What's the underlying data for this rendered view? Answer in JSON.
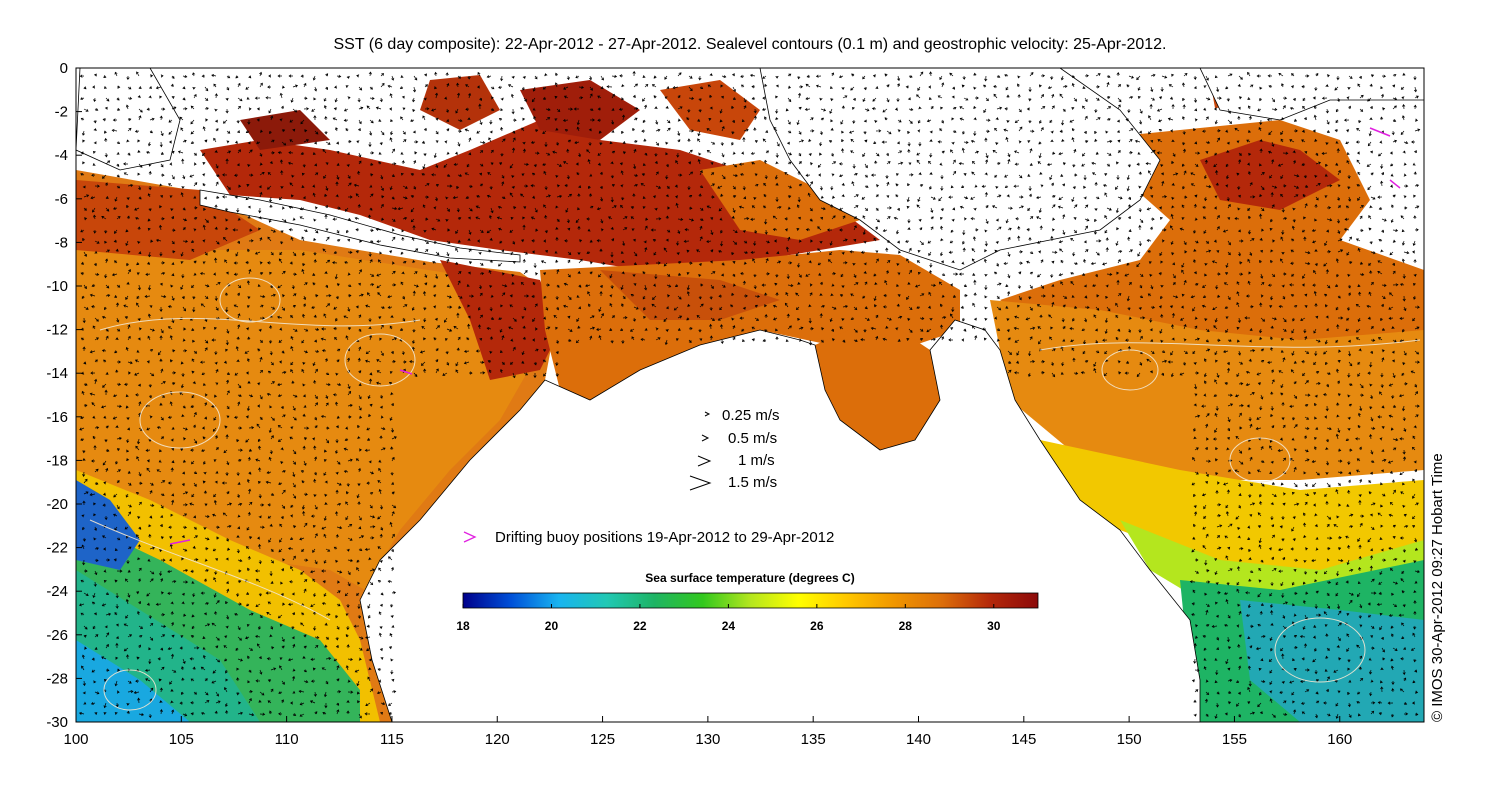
{
  "title": "SST (6 day composite): 22-Apr-2012 - 27-Apr-2012. Sealevel contours (0.1 m) and geostrophic velocity: 25-Apr-2012.",
  "colorbar": {
    "title": "Sea surface temperature (degrees C)",
    "min": 18,
    "max": 31,
    "ticks": [
      "18",
      "20",
      "22",
      "24",
      "26",
      "28",
      "30"
    ],
    "colors": [
      "#00008b",
      "#0050d8",
      "#19b4f0",
      "#21c8b4",
      "#1eb464",
      "#32c81e",
      "#b4e61e",
      "#ffff00",
      "#ffc800",
      "#f09600",
      "#dc6e0a",
      "#b4280a",
      "#8c0a0a"
    ]
  },
  "velocity_legend": [
    {
      "label": "0.25 m/s"
    },
    {
      "label": "0.5 m/s"
    },
    {
      "label": "1 m/s"
    },
    {
      "label": "1.5 m/s"
    }
  ],
  "buoy_legend": {
    "label": "Drifting buoy positions 19-Apr-2012 to 29-Apr-2012",
    "color": "#e020e0"
  },
  "credit": "© IMOS 30-Apr-2012 09:27 Hobart Time",
  "chart_data": {
    "type": "heatmap",
    "title": "SST (6 day composite): 22-Apr-2012 - 27-Apr-2012. Sealevel contours (0.1 m) and geostrophic velocity: 25-Apr-2012.",
    "xlabel": "",
    "ylabel": "",
    "x_ticks": [
      "100",
      "105",
      "110",
      "115",
      "120",
      "125",
      "130",
      "135",
      "140",
      "145",
      "150",
      "155",
      "160"
    ],
    "y_ticks": [
      "0",
      "-2",
      "-4",
      "-6",
      "-8",
      "-10",
      "-12",
      "-14",
      "-16",
      "-18",
      "-20",
      "-22",
      "-24",
      "-26",
      "-28",
      "-30"
    ],
    "xlim": [
      100,
      164
    ],
    "ylim": [
      -30,
      0
    ],
    "colorbar_range": [
      18,
      31
    ],
    "colorbar_label": "Sea surface temperature (degrees C)"
  }
}
